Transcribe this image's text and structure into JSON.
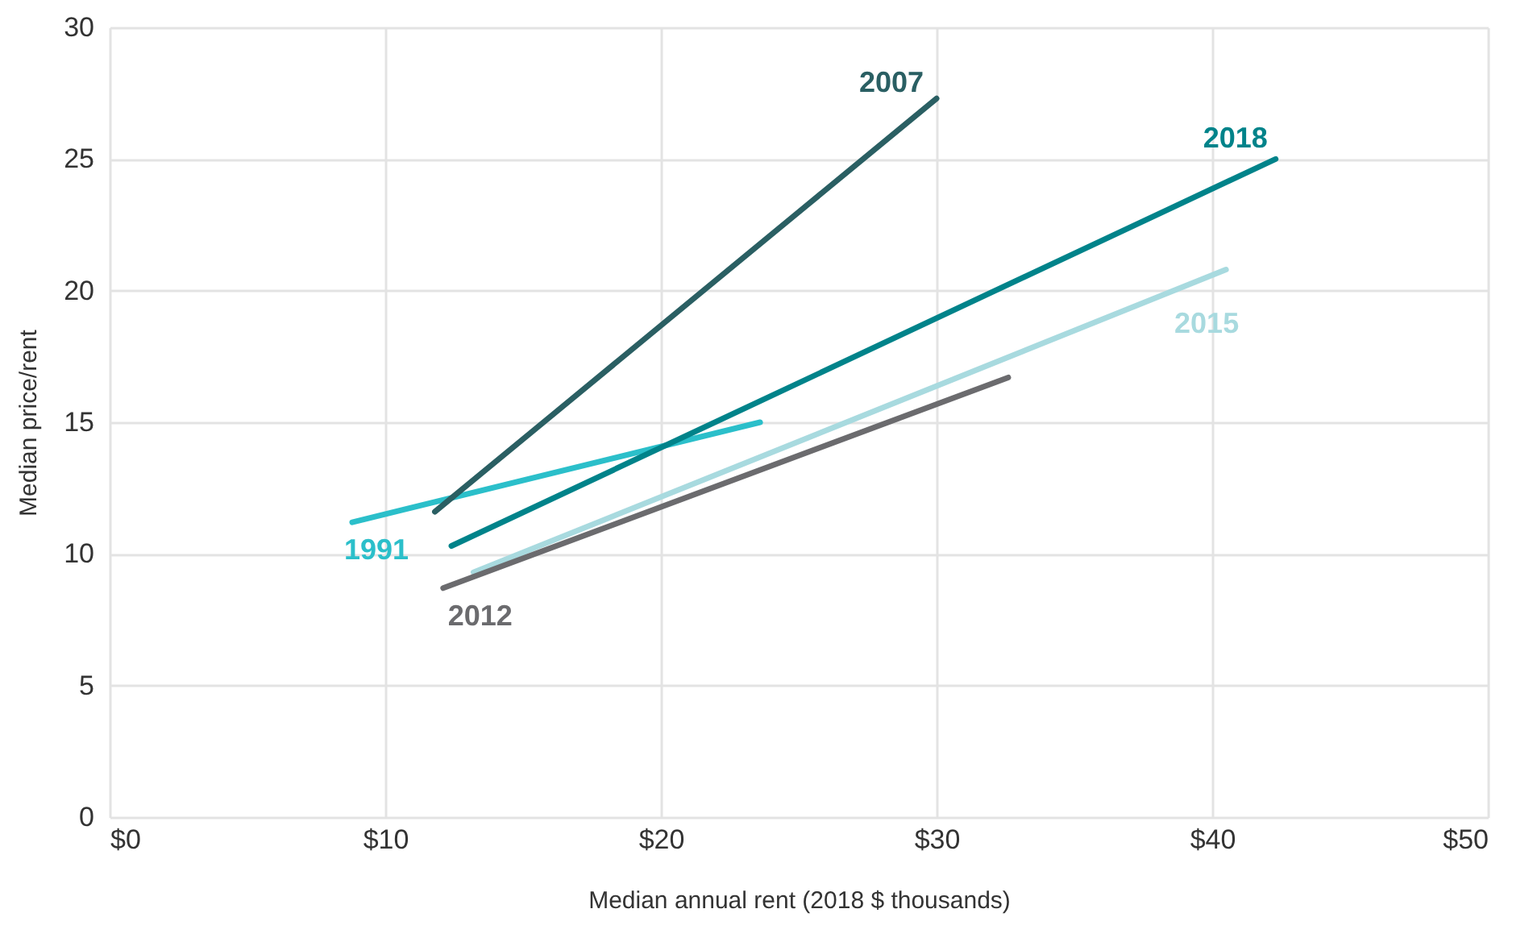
{
  "chart_data": {
    "type": "line",
    "xlabel": "Median annual rent (2018 $ thousands)",
    "ylabel": "Median price/rent",
    "xlim": [
      0,
      50
    ],
    "xticks": [
      {
        "value": 0,
        "label": "$0"
      },
      {
        "value": 10,
        "label": "$10"
      },
      {
        "value": 20,
        "label": "$20"
      },
      {
        "value": 30,
        "label": "$30"
      },
      {
        "value": 40,
        "label": "$40"
      },
      {
        "value": 50,
        "label": "$50"
      }
    ],
    "ylim": [
      0,
      30
    ],
    "yticks": [
      0,
      5,
      10,
      15,
      20,
      25,
      30
    ],
    "grid": true,
    "legend": false,
    "line_style": "solid",
    "marker": "none",
    "series": [
      {
        "name": "1991",
        "color": "#2bbfca",
        "x": [
          8.8,
          23.6
        ],
        "values": [
          11.2,
          15.0
        ]
      },
      {
        "name": "2007",
        "color": "#2a5f63",
        "x": [
          11.8,
          30.0
        ],
        "values": [
          11.6,
          27.3
        ]
      },
      {
        "name": "2018",
        "color": "#00838a",
        "x": [
          12.4,
          42.3
        ],
        "values": [
          10.3,
          25.0
        ]
      },
      {
        "name": "2015",
        "color": "#a8dadf",
        "x": [
          13.2,
          40.5
        ],
        "values": [
          9.3,
          20.8
        ]
      },
      {
        "name": "2012",
        "color": "#6b6b6e",
        "x": [
          12.1,
          32.6
        ],
        "values": [
          8.7,
          16.7
        ]
      }
    ]
  }
}
